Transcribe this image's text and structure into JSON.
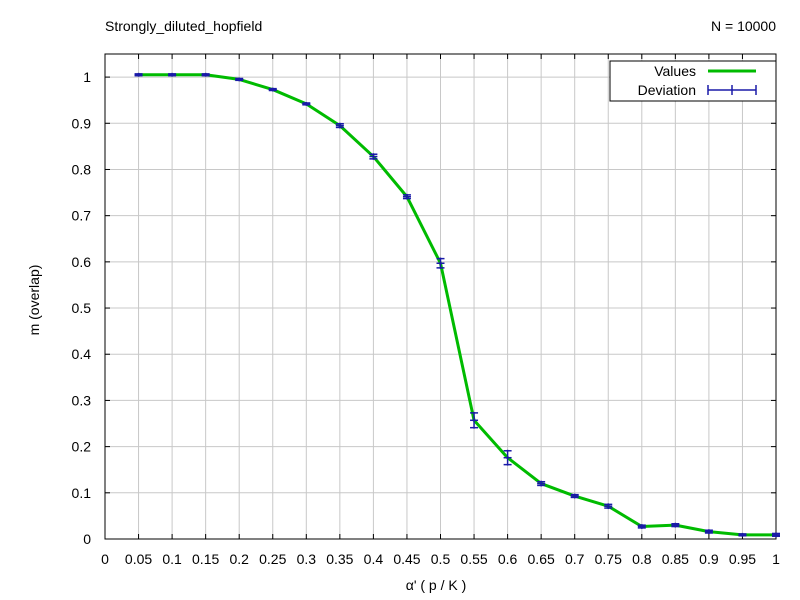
{
  "chart_data": {
    "type": "line",
    "title": "Strongly_diluted_hopfield",
    "annotation": "N = 10000",
    "xlabel": "α'   ( p / K )",
    "ylabel": "m (overlap)",
    "xlim": [
      0,
      1
    ],
    "ylim": [
      0,
      1.05
    ],
    "grid": true,
    "legend_position": "top-right",
    "x_ticks": [
      0,
      0.05,
      0.1,
      0.15,
      0.2,
      0.25,
      0.3,
      0.35,
      0.4,
      0.45,
      0.5,
      0.55,
      0.6,
      0.65,
      0.7,
      0.75,
      0.8,
      0.85,
      0.9,
      0.95,
      1
    ],
    "x_tick_labels": [
      "0",
      "0.05",
      "0.1",
      "0.15",
      "0.2",
      "0.25",
      "0.3",
      "0.35",
      "0.4",
      "0.45",
      "0.5",
      "0.55",
      "0.6",
      "0.65",
      "0.7",
      "0.75",
      "0.8",
      "0.85",
      "0.9",
      "0.95",
      "1"
    ],
    "y_ticks": [
      0,
      0.1,
      0.2,
      0.3,
      0.4,
      0.5,
      0.6,
      0.7,
      0.8,
      0.9,
      1
    ],
    "y_tick_labels": [
      "0",
      "0.1",
      "0.2",
      "0.3",
      "0.4",
      "0.5",
      "0.6",
      "0.7",
      "0.8",
      "0.9",
      "1"
    ],
    "x": [
      0.05,
      0.1,
      0.15,
      0.2,
      0.25,
      0.3,
      0.35,
      0.4,
      0.45,
      0.5,
      0.55,
      0.6,
      0.65,
      0.7,
      0.75,
      0.8,
      0.85,
      0.9,
      0.95,
      1
    ],
    "series": [
      {
        "name": "Values",
        "color": "#00bb00",
        "style": "line",
        "values": [
          1.005,
          1.005,
          1.005,
          0.995,
          0.973,
          0.942,
          0.895,
          0.828,
          0.741,
          0.597,
          0.257,
          0.176,
          0.12,
          0.093,
          0.071,
          0.027,
          0.03,
          0.016,
          0.009,
          0.009
        ]
      },
      {
        "name": "Deviation",
        "color": "#1a1aa8",
        "style": "errorbars",
        "values": [
          1.005,
          1.005,
          1.005,
          0.995,
          0.973,
          0.942,
          0.895,
          0.828,
          0.741,
          0.597,
          0.257,
          0.176,
          0.12,
          0.093,
          0.071,
          0.027,
          0.03,
          0.016,
          0.009,
          0.009
        ],
        "errors": [
          0.002,
          0.002,
          0.002,
          0.002,
          0.002,
          0.002,
          0.004,
          0.005,
          0.004,
          0.01,
          0.016,
          0.015,
          0.004,
          0.003,
          0.004,
          0.003,
          0.003,
          0.003,
          0.002,
          0.003
        ]
      }
    ]
  }
}
